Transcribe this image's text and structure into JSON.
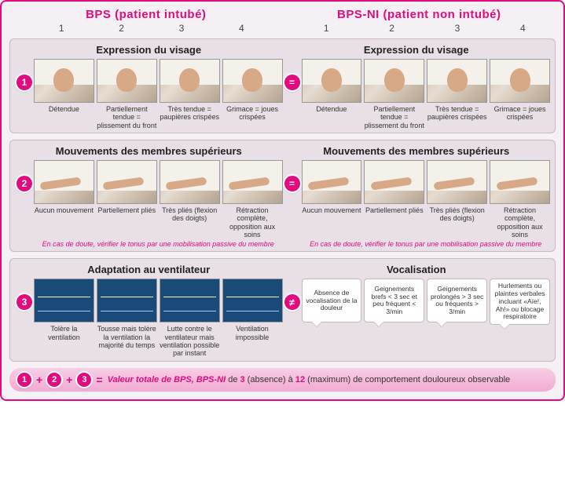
{
  "colors": {
    "accent": "#e20a7e",
    "panel_bg": "#e8e0e6",
    "page_bg": "#f5f0f3",
    "border": "#c8b8c4",
    "monitor_bg": "#1a4a78",
    "skin": "#d7a987",
    "pillow": "#f4f0ea"
  },
  "header": {
    "left": "BPS (patient intubé)",
    "right": "BPS-NI (patient non intubé)"
  },
  "scale": [
    "1",
    "2",
    "3",
    "4"
  ],
  "sections": [
    {
      "num": "1",
      "eq": "=",
      "left_title": "Expression du visage",
      "right_title": "Expression du visage",
      "left_items": [
        {
          "label": "Détendue"
        },
        {
          "label": "Partiellement tendue\n= plissement du front"
        },
        {
          "label": "Très tendue\n= paupières crispées"
        },
        {
          "label": "Grimace\n= joues crispées"
        }
      ],
      "right_items": [
        {
          "label": "Détendue"
        },
        {
          "label": "Partiellement tendue\n= plissement du front"
        },
        {
          "label": "Très tendue\n= paupières crispées"
        },
        {
          "label": "Grimace\n= joues crispées"
        }
      ],
      "thumb_type": "face"
    },
    {
      "num": "2",
      "eq": "=",
      "left_title": "Mouvements des membres supérieurs",
      "right_title": "Mouvements des membres supérieurs",
      "left_items": [
        {
          "label": "Aucun mouvement"
        },
        {
          "label": "Partiellement pliés"
        },
        {
          "label": "Très pliés (flexion des doigts)"
        },
        {
          "label": "Rétraction complète, opposition aux soins"
        }
      ],
      "right_items": [
        {
          "label": "Aucun mouvement"
        },
        {
          "label": "Partiellement pliés"
        },
        {
          "label": "Très pliés (flexion des doigts)"
        },
        {
          "label": "Rétraction complète, opposition aux soins"
        }
      ],
      "left_footnote": "En cas de doute, vérifier le tonus par une mobilisation passive du membre",
      "right_footnote": "En cas de doute, vérifier le tonus par une mobilisation passive du membre",
      "thumb_type": "arm"
    },
    {
      "num": "3",
      "eq": "≠",
      "left_title": "Adaptation au ventilateur",
      "right_title": "Vocalisation",
      "left_items": [
        {
          "label": "Tolère la ventilation"
        },
        {
          "label": "Tousse mais tolère la ventilation la majorité du temps"
        },
        {
          "label": "Lutte contre le ventilateur mais ventilation possible par instant"
        },
        {
          "label": "Ventilation impossible"
        }
      ],
      "right_items": [
        {
          "label": "Absence de vocalisation de la douleur"
        },
        {
          "label": "Geignements brefs < 3 sec et peu fréquent < 3/min"
        },
        {
          "label": "Geignements prolongés > 3 sec ou fréquents > 3/min"
        },
        {
          "label": "Hurlements ou plaintes verbales incluant «Aïe!, Ah!» ou blocage respiratoire"
        }
      ],
      "thumb_type": "monitor",
      "right_mode": "vocal"
    }
  ],
  "total": {
    "nums": [
      "1",
      "2",
      "3"
    ],
    "label_prefix": "Valeur totale de BPS, BPS-NI",
    "label_mid": " de ",
    "min": "3",
    "min_note": " (absence)",
    "to": " à ",
    "max": "12",
    "max_note": " (maximum)",
    "label_suffix": " de comportement douloureux observable"
  }
}
